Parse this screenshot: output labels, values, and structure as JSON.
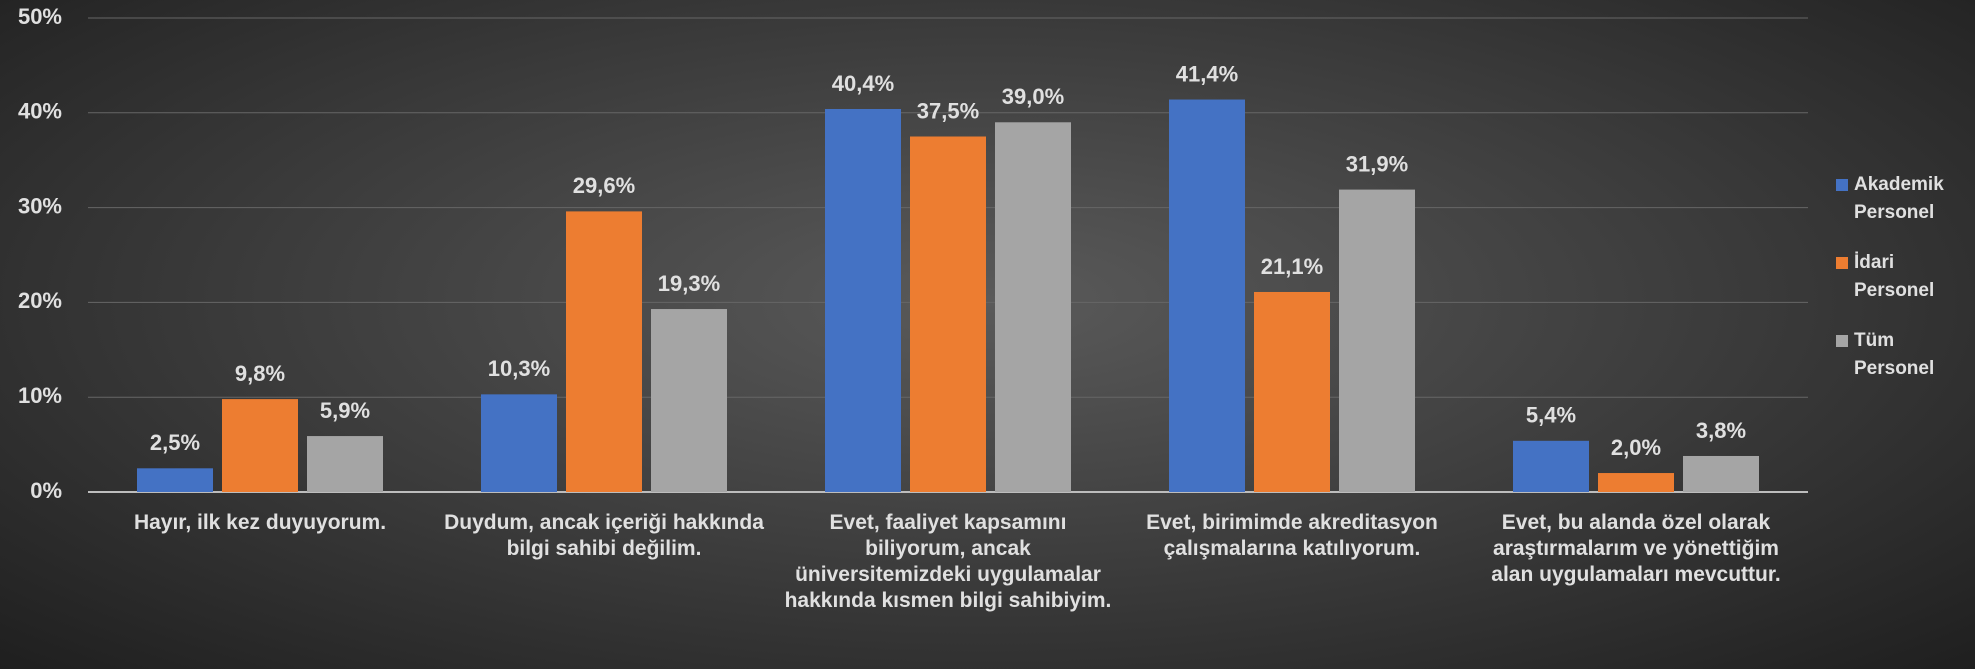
{
  "chart_data": {
    "type": "bar",
    "categories": [
      "Hayır, ilk kez duyuyorum.",
      "Duydum, ancak içeriği hakkında\nbilgi sahibi değilim.",
      "Evet, faaliyet kapsamını\nbiliyorum, ancak\nüniversitemizdeki uygulamalar\nhakkında kısmen bilgi sahibiyim.",
      "Evet, birimimde akreditasyon\nçalışmalarına katılıyorum.",
      "Evet, bu alanda özel olarak\naraştırmalarım ve yönettiğim\nalan uygulamaları mevcuttur."
    ],
    "series": [
      {
        "name": "Akademik Personel",
        "color": "#4472c4",
        "values": [
          2.5,
          10.3,
          40.4,
          41.4,
          5.4
        ],
        "value_labels": [
          "2,5%",
          "10,3%",
          "40,4%",
          "41,4%",
          "5,4%"
        ]
      },
      {
        "name": "İdari Personel",
        "color": "#ed7d31",
        "values": [
          9.8,
          29.6,
          37.5,
          21.1,
          2.0
        ],
        "value_labels": [
          "9,8%",
          "29,6%",
          "37,5%",
          "21,1%",
          "2,0%"
        ]
      },
      {
        "name": "Tüm Personel",
        "color": "#a5a5a5",
        "values": [
          5.9,
          19.3,
          39.0,
          31.9,
          3.8
        ],
        "value_labels": [
          "5,9%",
          "19,3%",
          "39,0%",
          "31,9%",
          "3,8%"
        ]
      }
    ],
    "ylim": [
      0,
      50
    ],
    "yticks": [
      {
        "value": 0,
        "label": "0%"
      },
      {
        "value": 10,
        "label": "10%"
      },
      {
        "value": 20,
        "label": "20%"
      },
      {
        "value": 30,
        "label": "30%"
      },
      {
        "value": 40,
        "label": "40%"
      },
      {
        "value": 50,
        "label": "50%"
      }
    ],
    "grid": true,
    "legend": "right"
  }
}
